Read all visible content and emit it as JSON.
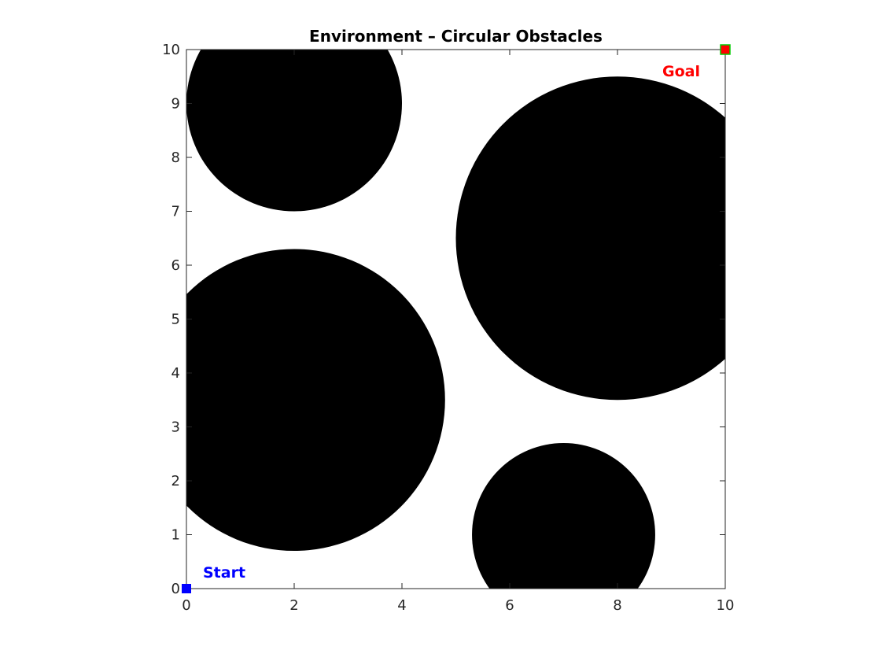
{
  "chart_data": {
    "type": "scatter",
    "title": "Environment  –  Circular Obstacles",
    "xlabel": "",
    "ylabel": "",
    "xlim": [
      0,
      10
    ],
    "ylim": [
      0,
      10
    ],
    "xticks": [
      0,
      2,
      4,
      6,
      8,
      10
    ],
    "yticks": [
      0,
      1,
      2,
      3,
      4,
      5,
      6,
      7,
      8,
      9,
      10
    ],
    "grid": false,
    "obstacles": [
      {
        "cx": 2,
        "cy": 9,
        "r": 2
      },
      {
        "cx": 2,
        "cy": 3.5,
        "r": 2.8
      },
      {
        "cx": 8,
        "cy": 6.5,
        "r": 3
      },
      {
        "cx": 7,
        "cy": 1,
        "r": 1.7
      }
    ],
    "start": {
      "x": 0,
      "y": 0,
      "label": "Start",
      "color": "#0000ff"
    },
    "goal": {
      "x": 10,
      "y": 10,
      "label": "Goal",
      "color": "#ff0000",
      "edge_color": "#00cc00"
    },
    "obstacle_color": "#000000",
    "free_color": "#ffffff"
  }
}
